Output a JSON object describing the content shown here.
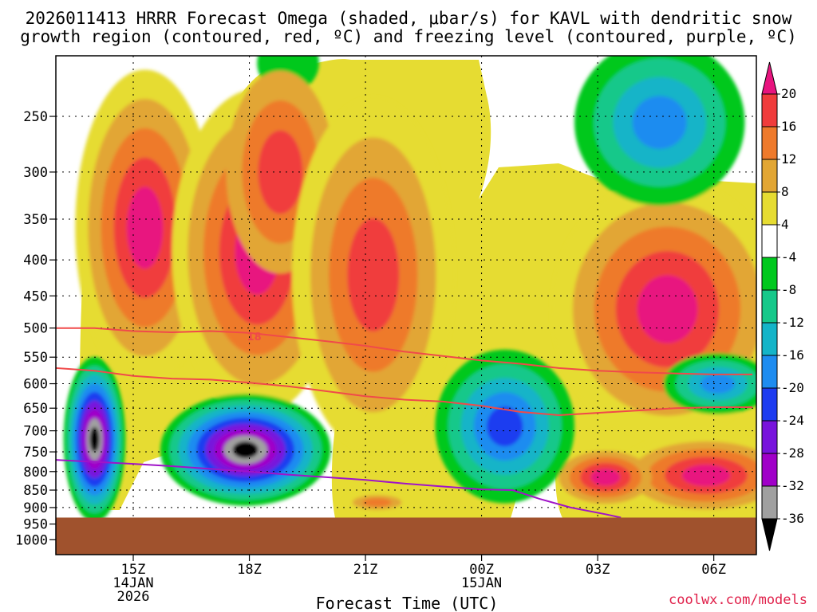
{
  "chart_data": {
    "type": "heatmap",
    "title_line1": "2026011413 HRRR Forecast Omega (shaded, μbar/s) for KAVL with dendritic snow",
    "title_line2": "growth region (contoured, red, ºC) and freezing level (contoured, purple, ºC)",
    "xlabel": "Forecast Time (UTC)",
    "credit": "coolwx.com/models",
    "x_ticks": [
      {
        "hour": 15,
        "lines": [
          "15Z",
          "14JAN",
          "2026"
        ]
      },
      {
        "hour": 18,
        "lines": [
          "18Z"
        ]
      },
      {
        "hour": 21,
        "lines": [
          "21Z"
        ]
      },
      {
        "hour": 24,
        "lines": [
          "00Z",
          "15JAN"
        ]
      },
      {
        "hour": 27,
        "lines": [
          "03Z"
        ]
      },
      {
        "hour": 30,
        "lines": [
          "06Z"
        ]
      }
    ],
    "x_range_hours": [
      13,
      31.1
    ],
    "y_ticks": [
      "250",
      "300",
      "350",
      "400",
      "450",
      "500",
      "550",
      "600",
      "650",
      "700",
      "750",
      "800",
      "850",
      "900",
      "950",
      "1000"
    ],
    "y_range_hpa": [
      205,
      1050
    ],
    "surface_pressure_hpa": 930,
    "colorbar": {
      "labels": [
        "20",
        "16",
        "12",
        "8",
        "4",
        "-4",
        "-8",
        "-12",
        "-16",
        "-20",
        "-24",
        "-28",
        "-32",
        "-36"
      ],
      "colors": [
        "#e8147f",
        "#f03c3c",
        "#ee7a2c",
        "#e2a634",
        "#e6dc32",
        "#ffffff",
        "#00c81e",
        "#16c88a",
        "#14b4c8",
        "#1e8cf0",
        "#1e3cf0",
        "#7814dc",
        "#a000c8",
        "#a0a0a0",
        "#000000"
      ]
    },
    "series": [
      {
        "name": "dendritic-upper",
        "color": "#f04a4a",
        "label": "18",
        "points": [
          [
            13,
            500
          ],
          [
            14,
            500
          ],
          [
            15,
            505
          ],
          [
            16,
            507
          ],
          [
            17,
            505
          ],
          [
            18,
            508
          ],
          [
            19,
            515
          ],
          [
            20,
            522
          ],
          [
            21,
            530
          ],
          [
            22,
            540
          ],
          [
            23,
            548
          ],
          [
            24,
            556
          ],
          [
            25,
            562
          ],
          [
            26,
            570
          ],
          [
            27,
            575
          ],
          [
            28,
            578
          ],
          [
            29,
            580
          ],
          [
            30,
            582
          ],
          [
            31,
            582
          ]
        ]
      },
      {
        "name": "dendritic-lower",
        "color": "#f04a4a",
        "points": [
          [
            13,
            570
          ],
          [
            14,
            575
          ],
          [
            15,
            585
          ],
          [
            16,
            590
          ],
          [
            17,
            592
          ],
          [
            18,
            598
          ],
          [
            19,
            605
          ],
          [
            20,
            615
          ],
          [
            21,
            625
          ],
          [
            22,
            632
          ],
          [
            23,
            636
          ],
          [
            24,
            645
          ],
          [
            25,
            658
          ],
          [
            26,
            665
          ],
          [
            27,
            660
          ],
          [
            28,
            655
          ],
          [
            29,
            650
          ],
          [
            30,
            648
          ],
          [
            31,
            648
          ]
        ]
      },
      {
        "name": "freezing-level",
        "color": "#a014c8",
        "points": [
          [
            13,
            770
          ],
          [
            14,
            775
          ],
          [
            15,
            780
          ],
          [
            16,
            786
          ],
          [
            17,
            793
          ],
          [
            18,
            800
          ],
          [
            19,
            808
          ],
          [
            20,
            815
          ],
          [
            21,
            822
          ],
          [
            22,
            832
          ],
          [
            23,
            840
          ],
          [
            24,
            848
          ],
          [
            24.8,
            850
          ],
          [
            25.5,
            875
          ],
          [
            26.3,
            900
          ],
          [
            27.2,
            920
          ],
          [
            27.6,
            930
          ]
        ]
      }
    ],
    "blobs": [
      {
        "name": "hatch-top-green",
        "hour": 19.0,
        "hpa": 210,
        "rh": 0.8,
        "rp": 40,
        "levels": [
          "#00c81e"
        ]
      },
      {
        "name": "west-upper-plume",
        "hour": 15.3,
        "hpa": 360,
        "rh": 1.8,
        "rp": 220,
        "levels": [
          "#e6dc32",
          "#e2a634",
          "#ee7a2c",
          "#f03c3c",
          "#e8147f"
        ]
      },
      {
        "name": "mid-upper-plume",
        "hour": 18.2,
        "hpa": 390,
        "rh": 2.2,
        "rp": 210,
        "levels": [
          "#e6dc32",
          "#e2a634",
          "#ee7a2c",
          "#f03c3c",
          "#e8147f"
        ]
      },
      {
        "name": "mid-top-cell",
        "hour": 18.8,
        "hpa": 300,
        "rh": 1.4,
        "rp": 100,
        "levels": [
          "#e2a634",
          "#ee7a2c",
          "#f03c3c"
        ]
      },
      {
        "name": "center-plume",
        "hour": 21.2,
        "hpa": 420,
        "rh": 2.1,
        "rp": 240,
        "levels": [
          "#e6dc32",
          "#e2a634",
          "#ee7a2c",
          "#f03c3c"
        ]
      },
      {
        "name": "east-strong-ascent",
        "hour": 28.8,
        "hpa": 470,
        "rh": 3.0,
        "rp": 190,
        "levels": [
          "#e6dc32",
          "#e2a634",
          "#ee7a2c",
          "#f03c3c",
          "#e8147f"
        ]
      },
      {
        "name": "east-low-ascent",
        "hour": 29.8,
        "hpa": 810,
        "rh": 2.4,
        "rp": 110,
        "levels": [
          "#e6dc32",
          "#e2a634",
          "#ee7a2c",
          "#f03c3c",
          "#e8147f"
        ]
      },
      {
        "name": "east-low-cell",
        "hour": 27.2,
        "hpa": 815,
        "rh": 1.2,
        "rp": 70,
        "levels": [
          "#e2a634",
          "#ee7a2c",
          "#f03c3c",
          "#e8147f"
        ]
      },
      {
        "name": "ne-descent",
        "hour": 28.6,
        "hpa": 255,
        "rh": 2.2,
        "rp": 100,
        "levels": [
          "#00c81e",
          "#16c88a",
          "#14b4c8",
          "#1e8cf0"
        ]
      },
      {
        "name": "east-mid-descent",
        "hour": 30.1,
        "hpa": 600,
        "rh": 1.4,
        "rp": 60,
        "levels": [
          "#00c81e",
          "#16c88a",
          "#14b4c8",
          "#1e8cf0"
        ]
      },
      {
        "name": "center-descent",
        "hour": 24.6,
        "hpa": 690,
        "rh": 1.8,
        "rp": 170,
        "levels": [
          "#00c81e",
          "#16c88a",
          "#14b4c8",
          "#1e8cf0",
          "#1e3cf0"
        ]
      },
      {
        "name": "west-descent",
        "hour": 14.0,
        "hpa": 720,
        "rh": 0.8,
        "rp": 190,
        "levels": [
          "#00c81e",
          "#16c88a",
          "#14b4c8",
          "#1e8cf0",
          "#1e3cf0",
          "#7814dc",
          "#a000c8",
          "#a0a0a0",
          "#000000"
        ]
      },
      {
        "name": "main-descent",
        "hour": 17.9,
        "hpa": 745,
        "rh": 2.2,
        "rp": 135,
        "levels": [
          "#00c81e",
          "#16c88a",
          "#14b4c8",
          "#1e8cf0",
          "#1e3cf0",
          "#7814dc",
          "#a000c8",
          "#a0a0a0",
          "#000000"
        ]
      },
      {
        "name": "low-center-cell",
        "hour": 21.3,
        "hpa": 885,
        "rh": 0.9,
        "rp": 30,
        "levels": [
          "#e6dc32",
          "#e2a634",
          "#ee7a2c"
        ]
      }
    ]
  }
}
